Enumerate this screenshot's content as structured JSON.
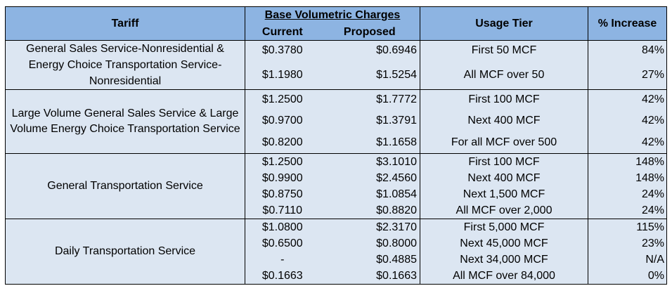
{
  "header": {
    "tariff": "Tariff",
    "base_charges": "Base Volumetric Charges",
    "current": "Current",
    "proposed": "Proposed",
    "usage_tier": "Usage Tier",
    "increase": "% Increase"
  },
  "groups": [
    {
      "tariff": "General Sales Service-Nonresidential & Energy Choice Transportation Service-Nonresidential",
      "rows": [
        {
          "current": "$0.3780",
          "proposed": "$0.6946",
          "tier": "First 50 MCF",
          "increase": "84%"
        },
        {
          "current": "$1.1980",
          "proposed": "$1.5254",
          "tier": "All MCF over 50",
          "increase": "27%"
        }
      ]
    },
    {
      "tariff": "Large Volume General Sales Service & Large Volume Energy Choice Transportation Service",
      "rows": [
        {
          "current": "$1.2500",
          "proposed": "$1.7772",
          "tier": "First 100 MCF",
          "increase": "42%"
        },
        {
          "current": "$0.9700",
          "proposed": "$1.3791",
          "tier": "Next 400 MCF",
          "increase": "42%"
        },
        {
          "current": "$0.8200",
          "proposed": "$1.1658",
          "tier": "For all MCF over 500",
          "increase": "42%"
        }
      ]
    },
    {
      "tariff": "General Transportation Service",
      "rows": [
        {
          "current": "$1.2500",
          "proposed": "$3.1010",
          "tier": "First 100 MCF",
          "increase": "148%"
        },
        {
          "current": "$0.9900",
          "proposed": "$2.4560",
          "tier": "Next 400 MCF",
          "increase": "148%"
        },
        {
          "current": "$0.8750",
          "proposed": "$1.0854",
          "tier": "Next 1,500 MCF",
          "increase": "24%"
        },
        {
          "current": "$0.7110",
          "proposed": "$0.8820",
          "tier": "All MCF over 2,000",
          "increase": "24%"
        }
      ]
    },
    {
      "tariff": "Daily Transportation Service",
      "rows": [
        {
          "current": "$1.0800",
          "proposed": "$2.3170",
          "tier": "First 5,000 MCF",
          "increase": "115%"
        },
        {
          "current": "$0.6500",
          "proposed": "$0.8000",
          "tier": "Next 45,000 MCF",
          "increase": "23%"
        },
        {
          "current": "-",
          "proposed": "$0.4885",
          "tier": "Next 34,000 MCF",
          "increase": "N/A"
        },
        {
          "current": "$0.1663",
          "proposed": "$0.1663",
          "tier": "All MCF over 84,000",
          "increase": "0%"
        }
      ]
    }
  ],
  "colors": {
    "header_bg": "#8db4e2",
    "body_bg": "#dce6f2"
  }
}
